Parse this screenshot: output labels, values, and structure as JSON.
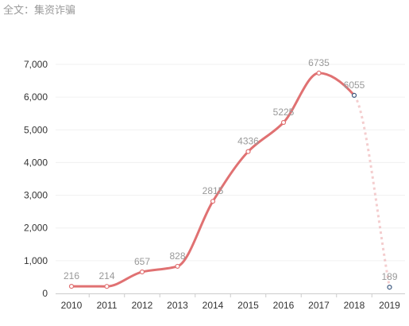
{
  "header": {
    "title": "全文：集资诈骗"
  },
  "chart_data": {
    "type": "line",
    "title": "",
    "xlabel": "",
    "ylabel": "",
    "categories": [
      "2010",
      "2011",
      "2012",
      "2013",
      "2014",
      "2015",
      "2016",
      "2017",
      "2018",
      "2019"
    ],
    "series": [
      {
        "values": [
          216,
          214,
          657,
          828,
          2815,
          4336,
          5225,
          6735,
          6055,
          189
        ],
        "color": "#e07172",
        "data_labels": [
          "216",
          "214",
          "657",
          "828",
          "2815",
          "4336",
          "5225",
          "6735",
          "6055",
          "189"
        ],
        "smooth": true,
        "dashed_from_index": 8
      }
    ],
    "ylim": [
      0,
      7000
    ],
    "y_ticks": [
      0,
      1000,
      2000,
      3000,
      4000,
      5000,
      6000,
      7000
    ],
    "y_tick_labels": [
      "0",
      "1,000",
      "2,000",
      "3,000",
      "4,000",
      "5,000",
      "6,000",
      "7,000"
    ],
    "grid": true,
    "legend": "none",
    "colors": {
      "grid": "#f0f0f0",
      "axis": "#cccccc",
      "last_point_marker": "#3d5a80"
    }
  }
}
